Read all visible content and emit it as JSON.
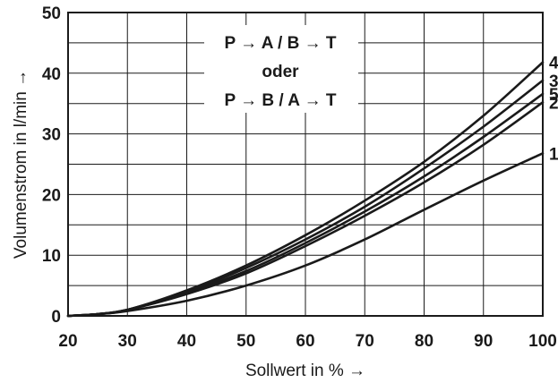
{
  "chart_data": {
    "type": "line",
    "xlabel": "Sollwert in % →",
    "ylabel": "Volumenstrom in l/min →",
    "xlim": [
      20,
      100
    ],
    "ylim": [
      0,
      50
    ],
    "x_ticks": [
      20,
      30,
      40,
      50,
      60,
      70,
      80,
      90,
      100
    ],
    "y_ticks": [
      0,
      10,
      20,
      30,
      40,
      50
    ],
    "grid": true,
    "annotation_lines": [
      "P → A / B → T",
      "oder",
      "P → B / A → T"
    ],
    "series": [
      {
        "name": "1",
        "x": [
          20,
          25,
          30,
          40,
          50,
          60,
          70,
          80,
          90,
          100
        ],
        "y": [
          0,
          0.3,
          0.8,
          2.5,
          5.0,
          8.3,
          12.6,
          17.5,
          22.3,
          26.8
        ]
      },
      {
        "name": "2",
        "x": [
          20,
          25,
          30,
          40,
          50,
          60,
          70,
          80,
          90,
          100
        ],
        "y": [
          0,
          0.3,
          1.0,
          3.6,
          7.0,
          11.5,
          16.5,
          22.0,
          28.2,
          35.2
        ]
      },
      {
        "name": "5",
        "x": [
          20,
          25,
          30,
          40,
          50,
          60,
          70,
          80,
          90,
          100
        ],
        "y": [
          0,
          0.3,
          1.0,
          3.8,
          7.4,
          12.0,
          17.2,
          23.0,
          29.5,
          36.6
        ]
      },
      {
        "name": "3",
        "x": [
          20,
          25,
          30,
          40,
          50,
          60,
          70,
          80,
          90,
          100
        ],
        "y": [
          0,
          0.3,
          1.0,
          4.0,
          7.9,
          12.6,
          18.0,
          24.3,
          31.2,
          38.8
        ]
      },
      {
        "name": "4",
        "x": [
          20,
          25,
          30,
          40,
          50,
          60,
          70,
          80,
          90,
          100
        ],
        "y": [
          0,
          0.3,
          1.0,
          4.2,
          8.3,
          13.3,
          19.0,
          25.4,
          33.0,
          41.8
        ]
      }
    ]
  }
}
